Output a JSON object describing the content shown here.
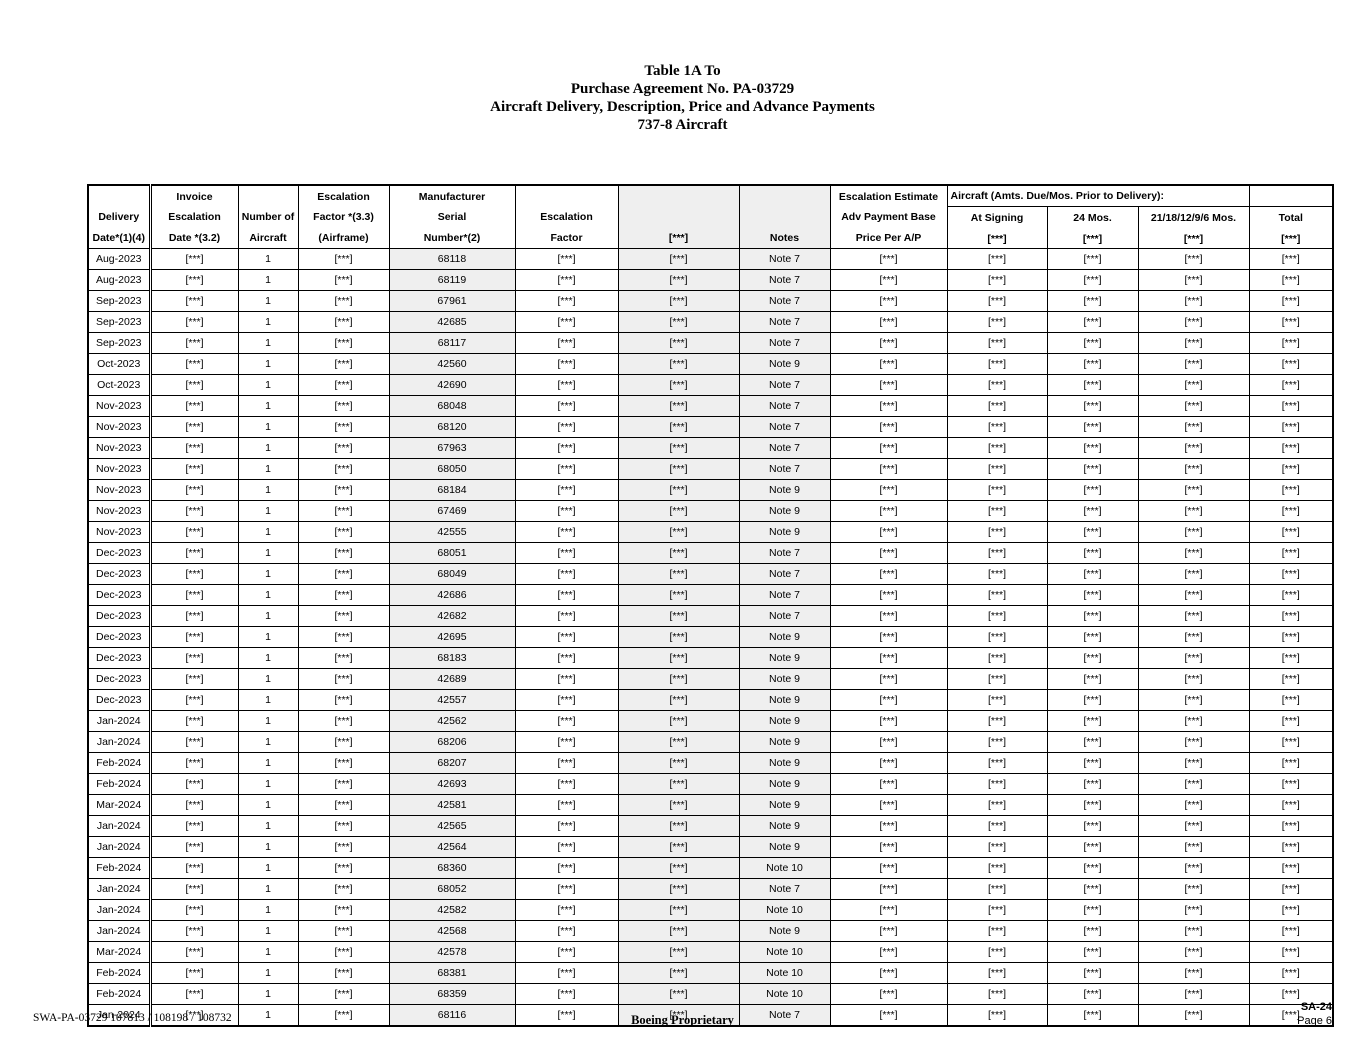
{
  "title": {
    "lines": [
      "Table 1A To",
      "Purchase Agreement No. PA-03729",
      "Aircraft Delivery, Description, Price and Advance Payments",
      "737-8 Aircraft"
    ]
  },
  "table": {
    "header": {
      "delivery": [
        "",
        "Delivery",
        "Date*(1)(4)"
      ],
      "invoice": [
        "Invoice",
        "Escalation",
        "Date *(3.2)"
      ],
      "number": [
        "",
        "Number of",
        "Aircraft"
      ],
      "esc_airframe": [
        "Escalation",
        "Factor *(3.3)",
        "(Airframe)"
      ],
      "serial": [
        "Manufacturer",
        "Serial",
        "Number*(2)"
      ],
      "esc_factor": [
        "",
        "Escalation",
        "Factor"
      ],
      "redacted": [
        "",
        "",
        "[***]"
      ],
      "notes": [
        "",
        "",
        "Notes"
      ],
      "adv": [
        "Escalation Estimate",
        "Adv Payment Base",
        "Price Per A/P"
      ],
      "group": "Aircraft (Amts. Due/Mos. Prior to Delivery):",
      "at_signing": [
        "At Signing",
        "[***]"
      ],
      "mos24": [
        "24 Mos.",
        "[***]"
      ],
      "mos21": [
        "21/18/12/9/6 Mos.",
        "[***]"
      ],
      "total": [
        "Total",
        "[***]"
      ]
    },
    "column_ids": [
      "delivery-date",
      "invoice-escalation-date",
      "number-of-aircraft",
      "escalation-factor-airframe",
      "manufacturer-serial-number",
      "escalation-factor",
      "redacted",
      "notes",
      "adv-payment-base-price",
      "at-signing",
      "24-mos",
      "21-18-12-9-6-mos",
      "total"
    ],
    "shaded_column_indexes": [
      4,
      6,
      7
    ],
    "rows": [
      [
        "Aug-2023",
        "[***]",
        "1",
        "[***]",
        "68118",
        "[***]",
        "[***]",
        "Note 7",
        "[***]",
        "[***]",
        "[***]",
        "[***]",
        "[***]"
      ],
      [
        "Aug-2023",
        "[***]",
        "1",
        "[***]",
        "68119",
        "[***]",
        "[***]",
        "Note 7",
        "[***]",
        "[***]",
        "[***]",
        "[***]",
        "[***]"
      ],
      [
        "Sep-2023",
        "[***]",
        "1",
        "[***]",
        "67961",
        "[***]",
        "[***]",
        "Note 7",
        "[***]",
        "[***]",
        "[***]",
        "[***]",
        "[***]"
      ],
      [
        "Sep-2023",
        "[***]",
        "1",
        "[***]",
        "42685",
        "[***]",
        "[***]",
        "Note 7",
        "[***]",
        "[***]",
        "[***]",
        "[***]",
        "[***]"
      ],
      [
        "Sep-2023",
        "[***]",
        "1",
        "[***]",
        "68117",
        "[***]",
        "[***]",
        "Note 7",
        "[***]",
        "[***]",
        "[***]",
        "[***]",
        "[***]"
      ],
      [
        "Oct-2023",
        "[***]",
        "1",
        "[***]",
        "42560",
        "[***]",
        "[***]",
        "Note 9",
        "[***]",
        "[***]",
        "[***]",
        "[***]",
        "[***]"
      ],
      [
        "Oct-2023",
        "[***]",
        "1",
        "[***]",
        "42690",
        "[***]",
        "[***]",
        "Note 7",
        "[***]",
        "[***]",
        "[***]",
        "[***]",
        "[***]"
      ],
      [
        "Nov-2023",
        "[***]",
        "1",
        "[***]",
        "68048",
        "[***]",
        "[***]",
        "Note 7",
        "[***]",
        "[***]",
        "[***]",
        "[***]",
        "[***]"
      ],
      [
        "Nov-2023",
        "[***]",
        "1",
        "[***]",
        "68120",
        "[***]",
        "[***]",
        "Note 7",
        "[***]",
        "[***]",
        "[***]",
        "[***]",
        "[***]"
      ],
      [
        "Nov-2023",
        "[***]",
        "1",
        "[***]",
        "67963",
        "[***]",
        "[***]",
        "Note 7",
        "[***]",
        "[***]",
        "[***]",
        "[***]",
        "[***]"
      ],
      [
        "Nov-2023",
        "[***]",
        "1",
        "[***]",
        "68050",
        "[***]",
        "[***]",
        "Note 7",
        "[***]",
        "[***]",
        "[***]",
        "[***]",
        "[***]"
      ],
      [
        "Nov-2023",
        "[***]",
        "1",
        "[***]",
        "68184",
        "[***]",
        "[***]",
        "Note 9",
        "[***]",
        "[***]",
        "[***]",
        "[***]",
        "[***]"
      ],
      [
        "Nov-2023",
        "[***]",
        "1",
        "[***]",
        "67469",
        "[***]",
        "[***]",
        "Note 9",
        "[***]",
        "[***]",
        "[***]",
        "[***]",
        "[***]"
      ],
      [
        "Nov-2023",
        "[***]",
        "1",
        "[***]",
        "42555",
        "[***]",
        "[***]",
        "Note 9",
        "[***]",
        "[***]",
        "[***]",
        "[***]",
        "[***]"
      ],
      [
        "Dec-2023",
        "[***]",
        "1",
        "[***]",
        "68051",
        "[***]",
        "[***]",
        "Note 7",
        "[***]",
        "[***]",
        "[***]",
        "[***]",
        "[***]"
      ],
      [
        "Dec-2023",
        "[***]",
        "1",
        "[***]",
        "68049",
        "[***]",
        "[***]",
        "Note 7",
        "[***]",
        "[***]",
        "[***]",
        "[***]",
        "[***]"
      ],
      [
        "Dec-2023",
        "[***]",
        "1",
        "[***]",
        "42686",
        "[***]",
        "[***]",
        "Note 7",
        "[***]",
        "[***]",
        "[***]",
        "[***]",
        "[***]"
      ],
      [
        "Dec-2023",
        "[***]",
        "1",
        "[***]",
        "42682",
        "[***]",
        "[***]",
        "Note 7",
        "[***]",
        "[***]",
        "[***]",
        "[***]",
        "[***]"
      ],
      [
        "Dec-2023",
        "[***]",
        "1",
        "[***]",
        "42695",
        "[***]",
        "[***]",
        "Note 9",
        "[***]",
        "[***]",
        "[***]",
        "[***]",
        "[***]"
      ],
      [
        "Dec-2023",
        "[***]",
        "1",
        "[***]",
        "68183",
        "[***]",
        "[***]",
        "Note 9",
        "[***]",
        "[***]",
        "[***]",
        "[***]",
        "[***]"
      ],
      [
        "Dec-2023",
        "[***]",
        "1",
        "[***]",
        "42689",
        "[***]",
        "[***]",
        "Note 9",
        "[***]",
        "[***]",
        "[***]",
        "[***]",
        "[***]"
      ],
      [
        "Dec-2023",
        "[***]",
        "1",
        "[***]",
        "42557",
        "[***]",
        "[***]",
        "Note 9",
        "[***]",
        "[***]",
        "[***]",
        "[***]",
        "[***]"
      ],
      [
        "Jan-2024",
        "[***]",
        "1",
        "[***]",
        "42562",
        "[***]",
        "[***]",
        "Note 9",
        "[***]",
        "[***]",
        "[***]",
        "[***]",
        "[***]"
      ],
      [
        "Jan-2024",
        "[***]",
        "1",
        "[***]",
        "68206",
        "[***]",
        "[***]",
        "Note 9",
        "[***]",
        "[***]",
        "[***]",
        "[***]",
        "[***]"
      ],
      [
        "Feb-2024",
        "[***]",
        "1",
        "[***]",
        "68207",
        "[***]",
        "[***]",
        "Note 9",
        "[***]",
        "[***]",
        "[***]",
        "[***]",
        "[***]"
      ],
      [
        "Feb-2024",
        "[***]",
        "1",
        "[***]",
        "42693",
        "[***]",
        "[***]",
        "Note 9",
        "[***]",
        "[***]",
        "[***]",
        "[***]",
        "[***]"
      ],
      [
        "Mar-2024",
        "[***]",
        "1",
        "[***]",
        "42581",
        "[***]",
        "[***]",
        "Note 9",
        "[***]",
        "[***]",
        "[***]",
        "[***]",
        "[***]"
      ],
      [
        "Jan-2024",
        "[***]",
        "1",
        "[***]",
        "42565",
        "[***]",
        "[***]",
        "Note 9",
        "[***]",
        "[***]",
        "[***]",
        "[***]",
        "[***]"
      ],
      [
        "Jan-2024",
        "[***]",
        "1",
        "[***]",
        "42564",
        "[***]",
        "[***]",
        "Note 9",
        "[***]",
        "[***]",
        "[***]",
        "[***]",
        "[***]"
      ],
      [
        "Feb-2024",
        "[***]",
        "1",
        "[***]",
        "68360",
        "[***]",
        "[***]",
        "Note 10",
        "[***]",
        "[***]",
        "[***]",
        "[***]",
        "[***]"
      ],
      [
        "Jan-2024",
        "[***]",
        "1",
        "[***]",
        "68052",
        "[***]",
        "[***]",
        "Note 7",
        "[***]",
        "[***]",
        "[***]",
        "[***]",
        "[***]"
      ],
      [
        "Jan-2024",
        "[***]",
        "1",
        "[***]",
        "42582",
        "[***]",
        "[***]",
        "Note 10",
        "[***]",
        "[***]",
        "[***]",
        "[***]",
        "[***]"
      ],
      [
        "Jan-2024",
        "[***]",
        "1",
        "[***]",
        "42568",
        "[***]",
        "[***]",
        "Note 9",
        "[***]",
        "[***]",
        "[***]",
        "[***]",
        "[***]"
      ],
      [
        "Mar-2024",
        "[***]",
        "1",
        "[***]",
        "42578",
        "[***]",
        "[***]",
        "Note 10",
        "[***]",
        "[***]",
        "[***]",
        "[***]",
        "[***]"
      ],
      [
        "Feb-2024",
        "[***]",
        "1",
        "[***]",
        "68381",
        "[***]",
        "[***]",
        "Note 10",
        "[***]",
        "[***]",
        "[***]",
        "[***]",
        "[***]"
      ],
      [
        "Feb-2024",
        "[***]",
        "1",
        "[***]",
        "68359",
        "[***]",
        "[***]",
        "Note 10",
        "[***]",
        "[***]",
        "[***]",
        "[***]",
        "[***]"
      ],
      [
        "Jan-2024",
        "[***]",
        "1",
        "[***]",
        "68116",
        "[***]",
        "[***]",
        "Note 7",
        "[***]",
        "[***]",
        "[***]",
        "[***]",
        "[***]"
      ]
    ]
  },
  "footer": {
    "left": "SWA-PA-03729 107813 / 108198 / 108732",
    "center": "Boeing Proprietary",
    "right_line1": "SA-24",
    "right_line2": "Page 6"
  },
  "colors": {
    "shaded_column": "#efefef",
    "border": "#000000",
    "page_background": "#ffffff"
  }
}
